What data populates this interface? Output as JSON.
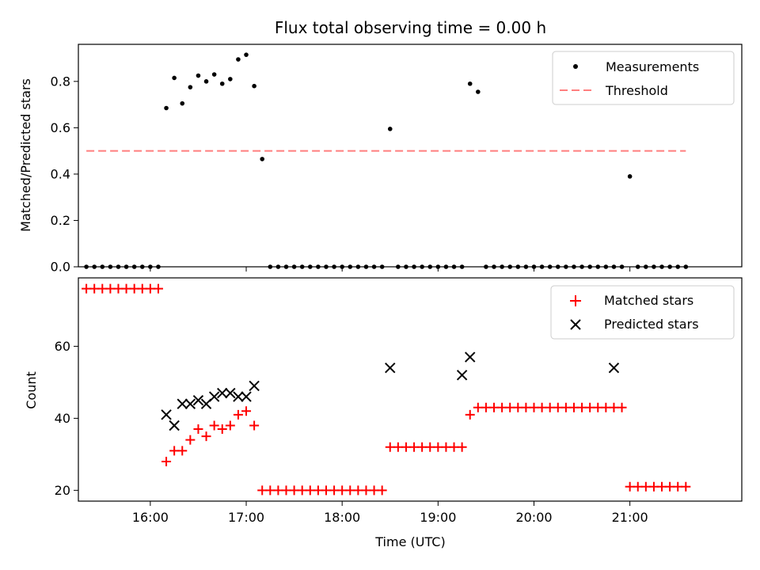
{
  "chart_data": [
    {
      "type": "scatter",
      "title": "Flux total observing time = 0.00 h",
      "xlabel": "",
      "ylabel": "Matched/Predicted stars",
      "ylim": [
        0,
        0.96
      ],
      "xlim": [
        "15:15",
        "22:10"
      ],
      "yticks": [
        "0.0",
        "0.2",
        "0.4",
        "0.6",
        "0.8"
      ],
      "ytick_values": [
        0,
        0.2,
        0.4,
        0.6,
        0.8
      ],
      "legend": {
        "placement": "upper right",
        "entries": [
          "Measurements",
          "Threshold"
        ]
      },
      "threshold": {
        "name": "Threshold",
        "value": 0.5,
        "x_start": "15:20",
        "x_end": "21:35",
        "color": "#ff7f7f"
      },
      "series": [
        {
          "name": "Measurements",
          "color": "#000000",
          "x": [
            "15:20",
            "15:25",
            "15:30",
            "15:35",
            "15:40",
            "15:45",
            "15:50",
            "15:55",
            "16:00",
            "16:05",
            "16:10",
            "16:15",
            "16:20",
            "16:25",
            "16:30",
            "16:35",
            "16:40",
            "16:45",
            "16:50",
            "16:55",
            "17:00",
            "17:05",
            "17:10",
            "17:15",
            "17:20",
            "17:25",
            "17:30",
            "17:35",
            "17:40",
            "17:45",
            "17:50",
            "17:55",
            "18:00",
            "18:05",
            "18:10",
            "18:15",
            "18:20",
            "18:25",
            "18:30",
            "18:35",
            "18:40",
            "18:45",
            "18:50",
            "18:55",
            "19:00",
            "19:05",
            "19:10",
            "19:15",
            "19:20",
            "19:25",
            "19:30",
            "19:35",
            "19:40",
            "19:45",
            "19:50",
            "19:55",
            "20:00",
            "20:05",
            "20:10",
            "20:15",
            "20:20",
            "20:25",
            "20:30",
            "20:35",
            "20:40",
            "20:45",
            "20:50",
            "20:55",
            "21:00",
            "21:05",
            "21:10",
            "21:15",
            "21:20",
            "21:25",
            "21:30",
            "21:35"
          ],
          "values": [
            0,
            0,
            0,
            0,
            0,
            0,
            0,
            0,
            0,
            0,
            0.685,
            0.815,
            0.705,
            0.775,
            0.825,
            0.8,
            0.83,
            0.79,
            0.81,
            0.895,
            0.915,
            0.78,
            0.465,
            0,
            0,
            0,
            0,
            0,
            0,
            0,
            0,
            0,
            0,
            0,
            0,
            0,
            0,
            0,
            0.595,
            0,
            0,
            0,
            0,
            0,
            0,
            0,
            0,
            0,
            0.79,
            0.755,
            0,
            0,
            0,
            0,
            0,
            0,
            0,
            0,
            0,
            0,
            0,
            0,
            0,
            0,
            0,
            0,
            0,
            0,
            0.39,
            0,
            0,
            0,
            0,
            0,
            0,
            0
          ]
        }
      ]
    },
    {
      "type": "scatter",
      "title": "",
      "xlabel": "Time (UTC)",
      "ylabel": "Count",
      "ylim": [
        17,
        79
      ],
      "xlim": [
        "15:15",
        "22:10"
      ],
      "xticks": [
        "16:00",
        "17:00",
        "18:00",
        "19:00",
        "20:00",
        "21:00"
      ],
      "yticks": [
        "20",
        "40",
        "60"
      ],
      "ytick_values": [
        20,
        40,
        60
      ],
      "legend": {
        "placement": "upper right",
        "entries": [
          "Matched stars",
          "Predicted stars"
        ]
      },
      "series": [
        {
          "name": "Matched stars",
          "color": "#ff0000",
          "marker": "+",
          "x": [
            "15:20",
            "15:25",
            "15:30",
            "15:35",
            "15:40",
            "15:45",
            "15:50",
            "15:55",
            "16:00",
            "16:05",
            "16:10",
            "16:15",
            "16:20",
            "16:25",
            "16:30",
            "16:35",
            "16:40",
            "16:45",
            "16:50",
            "16:55",
            "17:00",
            "17:05",
            "17:10",
            "17:15",
            "17:20",
            "17:25",
            "17:30",
            "17:35",
            "17:40",
            "17:45",
            "17:50",
            "17:55",
            "18:00",
            "18:05",
            "18:10",
            "18:15",
            "18:20",
            "18:25",
            "18:30",
            "18:35",
            "18:40",
            "18:45",
            "18:50",
            "18:55",
            "19:00",
            "19:05",
            "19:10",
            "19:15",
            "19:20",
            "19:25",
            "19:30",
            "19:35",
            "19:40",
            "19:45",
            "19:50",
            "19:55",
            "20:00",
            "20:05",
            "20:10",
            "20:15",
            "20:20",
            "20:25",
            "20:30",
            "20:35",
            "20:40",
            "20:45",
            "20:50",
            "20:55",
            "21:00",
            "21:05",
            "21:10",
            "21:15",
            "21:20",
            "21:25",
            "21:30",
            "21:35"
          ],
          "values": [
            76,
            76,
            76,
            76,
            76,
            76,
            76,
            76,
            76,
            76,
            28,
            31,
            31,
            34,
            37,
            35,
            38,
            37,
            38,
            41,
            42,
            38,
            20,
            20,
            20,
            20,
            20,
            20,
            20,
            20,
            20,
            20,
            20,
            20,
            20,
            20,
            20,
            20,
            32,
            32,
            32,
            32,
            32,
            32,
            32,
            32,
            32,
            32,
            41,
            43,
            43,
            43,
            43,
            43,
            43,
            43,
            43,
            43,
            43,
            43,
            43,
            43,
            43,
            43,
            43,
            43,
            43,
            43,
            21,
            21,
            21,
            21,
            21,
            21,
            21,
            21
          ]
        },
        {
          "name": "Predicted stars",
          "color": "#000000",
          "marker": "x",
          "x": [
            "16:10",
            "16:15",
            "16:20",
            "16:25",
            "16:30",
            "16:35",
            "16:40",
            "16:45",
            "16:50",
            "16:55",
            "17:00",
            "17:05",
            "18:30",
            "19:15",
            "19:20",
            "20:50"
          ],
          "values": [
            41,
            38,
            44,
            44,
            45,
            44,
            46,
            47,
            47,
            46,
            46,
            49,
            54,
            52,
            57,
            54
          ]
        }
      ]
    }
  ]
}
